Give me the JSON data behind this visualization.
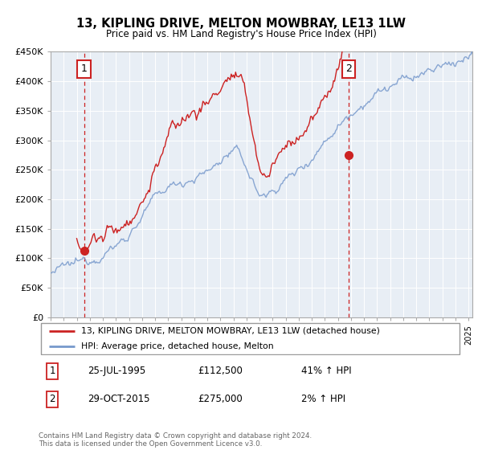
{
  "title": "13, KIPLING DRIVE, MELTON MOWBRAY, LE13 1LW",
  "subtitle": "Price paid vs. HM Land Registry's House Price Index (HPI)",
  "ylim": [
    0,
    450000
  ],
  "yticks": [
    0,
    50000,
    100000,
    150000,
    200000,
    250000,
    300000,
    350000,
    400000,
    450000
  ],
  "ytick_labels": [
    "£0",
    "£50K",
    "£100K",
    "£150K",
    "£200K",
    "£250K",
    "£300K",
    "£350K",
    "£400K",
    "£450K"
  ],
  "xlim_start": 1993.0,
  "xlim_end": 2025.3,
  "bg_color": "#e8eef5",
  "red_color": "#cc2222",
  "blue_color": "#7799cc",
  "sale1_x": 1995.56,
  "sale1_y": 112500,
  "sale2_x": 2015.83,
  "sale2_y": 275000,
  "legend_line1": "13, KIPLING DRIVE, MELTON MOWBRAY, LE13 1LW (detached house)",
  "legend_line2": "HPI: Average price, detached house, Melton",
  "note1_date": "25-JUL-1995",
  "note1_price": "£112,500",
  "note1_hpi": "41% ↑ HPI",
  "note2_date": "29-OCT-2015",
  "note2_price": "£275,000",
  "note2_hpi": "2% ↑ HPI",
  "footer": "Contains HM Land Registry data © Crown copyright and database right 2024.\nThis data is licensed under the Open Government Licence v3.0."
}
